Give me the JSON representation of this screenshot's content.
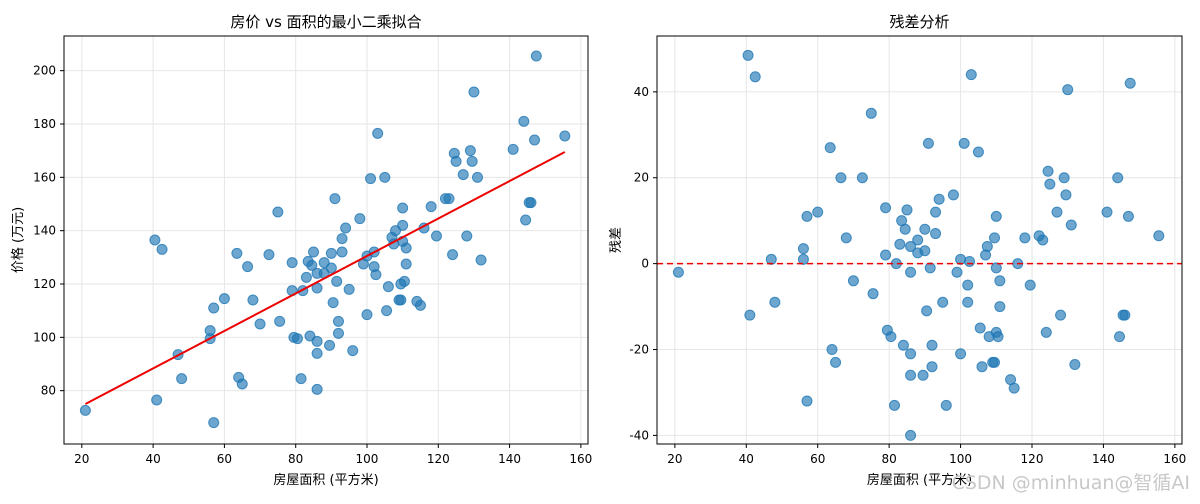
{
  "watermark": "CSDN @minhuan@智循AI",
  "colors": {
    "point": "#1f77b4",
    "fit_line": "#ee0000",
    "zero_line": "#ee0000",
    "grid": "#e6e6e6"
  },
  "chart_data": [
    {
      "type": "scatter",
      "title": "房价 vs 面积的最小二乘拟合",
      "xlabel": "房屋面积 (平方米)",
      "ylabel": "价格 (万元)",
      "xlim": [
        15,
        162
      ],
      "ylim": [
        60,
        213
      ],
      "xticks": [
        20,
        40,
        60,
        80,
        100,
        120,
        140,
        160
      ],
      "yticks": [
        80,
        100,
        120,
        140,
        160,
        180,
        200
      ],
      "grid": true,
      "fit_line": {
        "x": [
          21,
          155.5
        ],
        "y": [
          75,
          169.5
        ]
      },
      "points": [
        [
          21,
          72.6
        ],
        [
          40.5,
          136.5
        ],
        [
          41,
          76.5
        ],
        [
          42.5,
          133
        ],
        [
          47,
          93.5
        ],
        [
          48,
          84.5
        ],
        [
          56,
          99.5
        ],
        [
          56,
          102.5
        ],
        [
          57,
          111
        ],
        [
          57,
          68
        ],
        [
          60,
          114.5
        ],
        [
          63.5,
          131.5
        ],
        [
          64,
          85
        ],
        [
          65,
          82.5
        ],
        [
          66.5,
          126.5
        ],
        [
          68,
          114
        ],
        [
          70,
          105
        ],
        [
          72.5,
          131
        ],
        [
          75,
          147
        ],
        [
          75.5,
          106
        ],
        [
          79,
          128
        ],
        [
          79,
          117.5
        ],
        [
          79.5,
          100
        ],
        [
          80.5,
          99.5
        ],
        [
          81.5,
          84.5
        ],
        [
          82,
          117.5
        ],
        [
          83,
          122.5
        ],
        [
          83.5,
          128.5
        ],
        [
          84,
          100.5
        ],
        [
          84.5,
          127
        ],
        [
          85,
          132
        ],
        [
          86,
          118.5
        ],
        [
          86,
          98.5
        ],
        [
          86,
          94
        ],
        [
          86,
          124
        ],
        [
          86,
          80.5
        ],
        [
          88,
          128
        ],
        [
          88,
          124
        ],
        [
          89.5,
          97
        ],
        [
          90,
          131.5
        ],
        [
          90,
          126
        ],
        [
          90.5,
          113
        ],
        [
          91,
          152
        ],
        [
          91.5,
          121
        ],
        [
          92,
          101.5
        ],
        [
          92,
          106
        ],
        [
          93,
          132
        ],
        [
          93,
          137
        ],
        [
          94,
          141
        ],
        [
          95,
          118
        ],
        [
          96,
          95
        ],
        [
          98,
          144.5
        ],
        [
          99,
          127.5
        ],
        [
          100,
          108.5
        ],
        [
          100,
          130.5
        ],
        [
          101,
          159.5
        ],
        [
          102,
          126.5
        ],
        [
          102,
          132
        ],
        [
          102.5,
          123.5
        ],
        [
          103,
          176.5
        ],
        [
          105,
          160
        ],
        [
          105.5,
          110
        ],
        [
          106,
          119
        ],
        [
          107,
          137.5
        ],
        [
          107.5,
          135
        ],
        [
          108,
          140
        ],
        [
          109,
          114
        ],
        [
          109.5,
          114
        ],
        [
          109.5,
          120
        ],
        [
          110,
          142
        ],
        [
          110,
          136
        ],
        [
          110,
          148.5
        ],
        [
          110.5,
          121
        ],
        [
          111,
          133.5
        ],
        [
          111,
          127.5
        ],
        [
          114,
          113.5
        ],
        [
          115,
          112
        ],
        [
          116,
          141
        ],
        [
          118,
          149
        ],
        [
          119.5,
          138
        ],
        [
          122,
          152
        ],
        [
          123,
          152
        ],
        [
          124,
          131
        ],
        [
          124.5,
          169
        ],
        [
          125,
          166
        ],
        [
          127,
          161
        ],
        [
          128,
          138
        ],
        [
          129,
          170
        ],
        [
          129.5,
          166
        ],
        [
          130,
          192
        ],
        [
          131,
          160
        ],
        [
          132,
          129
        ],
        [
          141,
          170.5
        ],
        [
          144,
          181
        ],
        [
          144.5,
          144
        ],
        [
          145.5,
          150.5
        ],
        [
          146,
          150.5
        ],
        [
          147,
          174
        ],
        [
          147.5,
          205.5
        ],
        [
          155.5,
          175.5
        ]
      ]
    },
    {
      "type": "scatter",
      "title": "残差分析",
      "xlabel": "房屋面积 (平方米)",
      "ylabel": "残差",
      "xlim": [
        15,
        162
      ],
      "ylim": [
        -42,
        53
      ],
      "xticks": [
        20,
        40,
        60,
        80,
        100,
        120,
        140,
        160
      ],
      "yticks": [
        -40,
        -20,
        0,
        20,
        40
      ],
      "grid": true,
      "zero_line": 0,
      "points": [
        [
          21,
          -2
        ],
        [
          40.5,
          48.5
        ],
        [
          41,
          -12
        ],
        [
          42.5,
          43.5
        ],
        [
          47,
          1
        ],
        [
          48,
          -9
        ],
        [
          56,
          1
        ],
        [
          56,
          3.5
        ],
        [
          57,
          11
        ],
        [
          57,
          -32
        ],
        [
          60,
          12
        ],
        [
          63.5,
          27
        ],
        [
          64,
          -20
        ],
        [
          65,
          -23
        ],
        [
          66.5,
          20
        ],
        [
          68,
          6
        ],
        [
          70,
          -4
        ],
        [
          72.5,
          20
        ],
        [
          75,
          35
        ],
        [
          75.5,
          -7
        ],
        [
          79,
          13
        ],
        [
          79,
          2
        ],
        [
          79.5,
          -15.5
        ],
        [
          80.5,
          -17
        ],
        [
          81.5,
          -33
        ],
        [
          82,
          0
        ],
        [
          83,
          4.5
        ],
        [
          83.5,
          10
        ],
        [
          84,
          -19
        ],
        [
          84.5,
          8
        ],
        [
          85,
          12.5
        ],
        [
          86,
          -2
        ],
        [
          86,
          -21
        ],
        [
          86,
          -26
        ],
        [
          86,
          4
        ],
        [
          86,
          -40
        ],
        [
          88,
          2.5
        ],
        [
          88,
          5.5
        ],
        [
          89.5,
          -26
        ],
        [
          90,
          8
        ],
        [
          90,
          3
        ],
        [
          90.5,
          -11
        ],
        [
          91,
          28
        ],
        [
          91.5,
          -1
        ],
        [
          92,
          -19
        ],
        [
          92,
          -24
        ],
        [
          93,
          7
        ],
        [
          93,
          12
        ],
        [
          94,
          15
        ],
        [
          95,
          -9
        ],
        [
          96,
          -33
        ],
        [
          98,
          16
        ],
        [
          99,
          -2
        ],
        [
          100,
          -21
        ],
        [
          100,
          1
        ],
        [
          101,
          28
        ],
        [
          102,
          -5
        ],
        [
          102,
          -9
        ],
        [
          102.5,
          0.5
        ],
        [
          103,
          44
        ],
        [
          105,
          26
        ],
        [
          105.5,
          -15
        ],
        [
          106,
          -24
        ],
        [
          107,
          2
        ],
        [
          107.5,
          4
        ],
        [
          108,
          -17
        ],
        [
          109,
          -23
        ],
        [
          109.5,
          -23
        ],
        [
          109.5,
          6
        ],
        [
          110,
          -1
        ],
        [
          110,
          11
        ],
        [
          110,
          -16
        ],
        [
          110.5,
          -17
        ],
        [
          111,
          -4
        ],
        [
          111,
          -10
        ],
        [
          114,
          -27
        ],
        [
          115,
          -29
        ],
        [
          116,
          0
        ],
        [
          118,
          6
        ],
        [
          119.5,
          -5
        ],
        [
          122,
          6.5
        ],
        [
          123,
          5.5
        ],
        [
          124,
          -16
        ],
        [
          124.5,
          21.5
        ],
        [
          125,
          18.5
        ],
        [
          127,
          12
        ],
        [
          128,
          -12
        ],
        [
          129,
          20
        ],
        [
          129.5,
          16
        ],
        [
          130,
          40.5
        ],
        [
          131,
          9
        ],
        [
          132,
          -23.5
        ],
        [
          141,
          12
        ],
        [
          144,
          20
        ],
        [
          144.5,
          -17
        ],
        [
          145.5,
          -12
        ],
        [
          146,
          -12
        ],
        [
          147,
          11
        ],
        [
          147.5,
          42
        ],
        [
          155.5,
          6.5
        ]
      ]
    }
  ]
}
